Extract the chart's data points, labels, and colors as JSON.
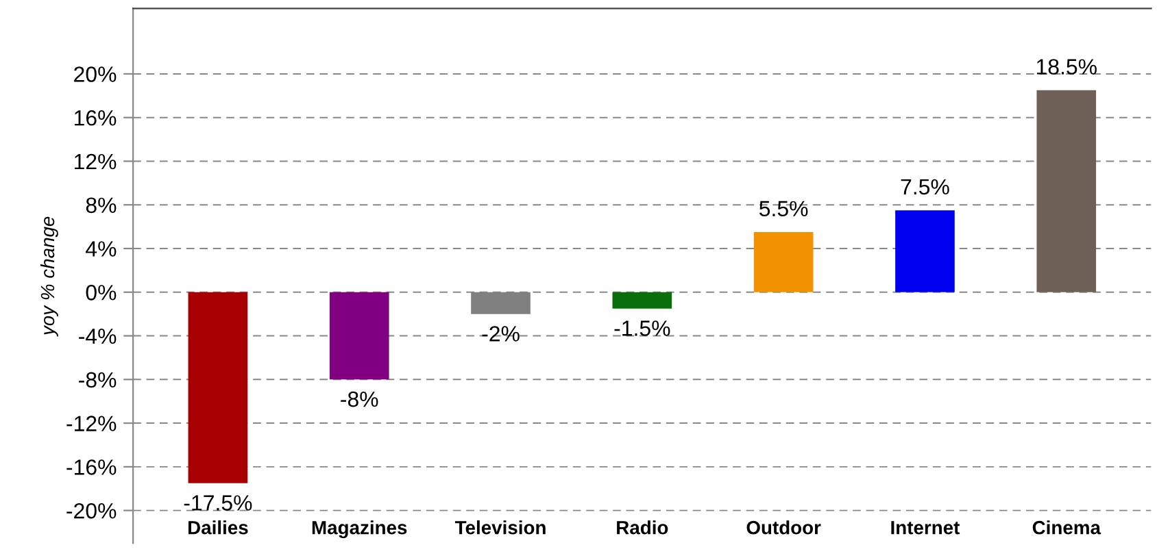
{
  "chart_data": {
    "type": "bar",
    "ylabel": "yoy % change",
    "categories": [
      "Dailies",
      "Magazines",
      "Television",
      "Radio",
      "Outdoor",
      "Internet",
      "Cinema"
    ],
    "values": [
      -17.5,
      -8,
      -2,
      -1.5,
      5.5,
      7.5,
      18.5
    ],
    "colors": [
      "#a80000",
      "#800080",
      "#808080",
      "#0a6e0a",
      "#f39200",
      "#0000f0",
      "#6e5f57"
    ],
    "value_labels": [
      "-17.5%",
      "-8%",
      "-2%",
      "-1.5%",
      "5.5%",
      "7.5%",
      "18.5%"
    ],
    "ylim": [
      -23,
      26
    ],
    "yticks": [
      {
        "value": -20,
        "label": "-20%"
      },
      {
        "value": -16,
        "label": "-16%"
      },
      {
        "value": -12,
        "label": "-12%"
      },
      {
        "value": -8,
        "label": "-8%"
      },
      {
        "value": -4,
        "label": "-4%"
      },
      {
        "value": 0,
        "label": "0%"
      },
      {
        "value": 4,
        "label": "4%"
      },
      {
        "value": 8,
        "label": "8%"
      },
      {
        "value": 12,
        "label": "12%"
      },
      {
        "value": 16,
        "label": "16%"
      },
      {
        "value": 20,
        "label": "20%"
      }
    ],
    "grid": "y"
  }
}
